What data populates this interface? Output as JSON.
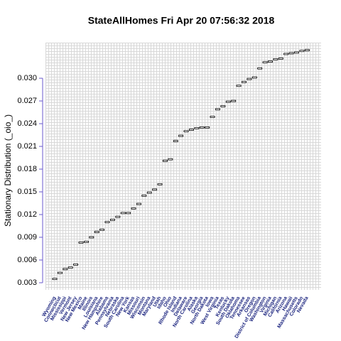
{
  "chart_data": {
    "type": "box",
    "title": "StateAllHomes  Fri Apr 20 07:56:32 2018",
    "ylabel": "Stationary Distribution (_oio_)",
    "categories": [
      "Wyoming",
      "Connecticut",
      "Mississippi",
      "Vermont",
      "New Jersey",
      "New Mexico",
      "Maine",
      "Illinois",
      "Louisiana",
      "New Hampshire",
      "Alabama",
      "Pennsylvania",
      "Nebraska",
      "South Carolina",
      "New York",
      "Kansas",
      "Missouri",
      "Wisconsin",
      "Montana",
      "Maryland",
      "Utah",
      "Idaho",
      "Ohio",
      "Rhode Island",
      "Indiana",
      "Delaware",
      "North Carolina",
      "Alaska",
      "Georgia",
      "North Dakota",
      "Iowa",
      "West Virginia",
      "Texas",
      "Kentucky",
      "South Dakota",
      "Oklahoma",
      "Tennessee",
      "Arkansas",
      "Oregon",
      "District of Columbia",
      "Washington",
      "Virginia",
      "Michigan",
      "California",
      "Arizona",
      "Hawaii",
      "Massachusetts",
      "Colorado",
      "Nevada"
    ],
    "values": [
      0.0035,
      0.0043,
      0.0048,
      0.005,
      0.0054,
      0.0083,
      0.0084,
      0.009,
      0.0097,
      0.01,
      0.011,
      0.0113,
      0.0117,
      0.0122,
      0.0122,
      0.0128,
      0.0134,
      0.0145,
      0.0149,
      0.0153,
      0.016,
      0.0191,
      0.0193,
      0.0217,
      0.0224,
      0.023,
      0.0232,
      0.0234,
      0.0235,
      0.0235,
      0.0249,
      0.0259,
      0.0263,
      0.0269,
      0.027,
      0.029,
      0.0295,
      0.0299,
      0.0301,
      0.0313,
      0.0321,
      0.0322,
      0.0325,
      0.0326,
      0.0332,
      0.0333,
      0.0334,
      0.0336,
      0.0337
    ],
    "ylim": [
      0.00206,
      0.0347
    ],
    "yticks": [
      0.003,
      0.006,
      0.009,
      0.012,
      0.015,
      0.018,
      0.021,
      0.024,
      0.027,
      {
        "value": 0.03,
        "label": "0.030"
      }
    ],
    "grid": true,
    "color": "#000000",
    "axis_color": "#6a5acd",
    "label_color": "#1a237e"
  }
}
